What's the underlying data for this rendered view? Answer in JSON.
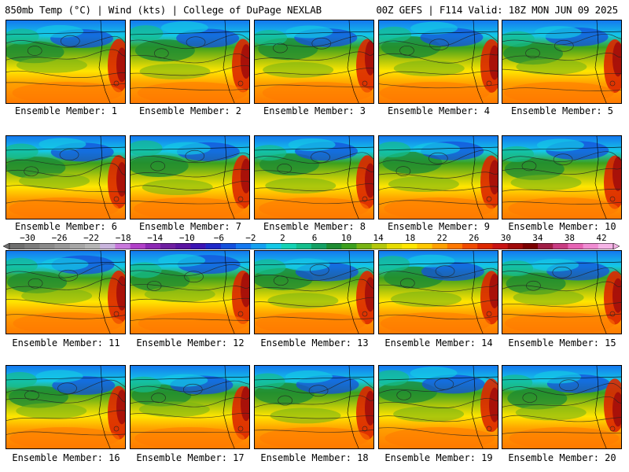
{
  "header": {
    "left": "850mb Temp (°C) | Wind (kts) | College of DuPage NEXLAB",
    "right": "00Z GEFS | F114 Valid: 18Z MON JUN 09 2025"
  },
  "legend": {
    "labels": [
      "−30",
      "−26",
      "−22",
      "−18",
      "−14",
      "−10",
      "−6",
      "−2",
      "2",
      "6",
      "10",
      "14",
      "18",
      "22",
      "26",
      "30",
      "34",
      "38",
      "42"
    ],
    "colors": [
      "#6e6e6e",
      "#7c7c7c",
      "#8a8a8a",
      "#989898",
      "#a6a6a6",
      "#b4b4b4",
      "#c8b4dc",
      "#c878dc",
      "#b040c8",
      "#8c28b4",
      "#6e1ea0",
      "#5a14a0",
      "#3c14b4",
      "#1e28c8",
      "#1450dc",
      "#1478f0",
      "#14a0f0",
      "#14c8e6",
      "#14d2b4",
      "#14be8c",
      "#14a064",
      "#1e8c32",
      "#3ca01e",
      "#78b414",
      "#b4c80a",
      "#e6dc00",
      "#ffe600",
      "#ffc800",
      "#ffa000",
      "#ff7800",
      "#f04b00",
      "#dc2800",
      "#c81414",
      "#a00a0a",
      "#7a0000",
      "#a01e46",
      "#c83c82",
      "#e664b4",
      "#f08cd2",
      "#f5b4e6"
    ]
  },
  "members": [
    {
      "n": 1,
      "label": "Ensemble Member: 1"
    },
    {
      "n": 2,
      "label": "Ensemble Member: 2"
    },
    {
      "n": 3,
      "label": "Ensemble Member: 3"
    },
    {
      "n": 4,
      "label": "Ensemble Member: 4"
    },
    {
      "n": 5,
      "label": "Ensemble Member: 5"
    },
    {
      "n": 6,
      "label": "Ensemble Member: 6"
    },
    {
      "n": 7,
      "label": "Ensemble Member: 7"
    },
    {
      "n": 8,
      "label": "Ensemble Member: 8"
    },
    {
      "n": 9,
      "label": "Ensemble Member: 9"
    },
    {
      "n": 10,
      "label": "Ensemble Member: 10"
    },
    {
      "n": 11,
      "label": "Ensemble Member: 11"
    },
    {
      "n": 12,
      "label": "Ensemble Member: 12"
    },
    {
      "n": 13,
      "label": "Ensemble Member: 13"
    },
    {
      "n": 14,
      "label": "Ensemble Member: 14"
    },
    {
      "n": 15,
      "label": "Ensemble Member: 15"
    },
    {
      "n": 16,
      "label": "Ensemble Member: 16"
    },
    {
      "n": 17,
      "label": "Ensemble Member: 17"
    },
    {
      "n": 18,
      "label": "Ensemble Member: 18"
    },
    {
      "n": 19,
      "label": "Ensemble Member: 19"
    },
    {
      "n": 20,
      "label": "Ensemble Member: 20"
    }
  ]
}
